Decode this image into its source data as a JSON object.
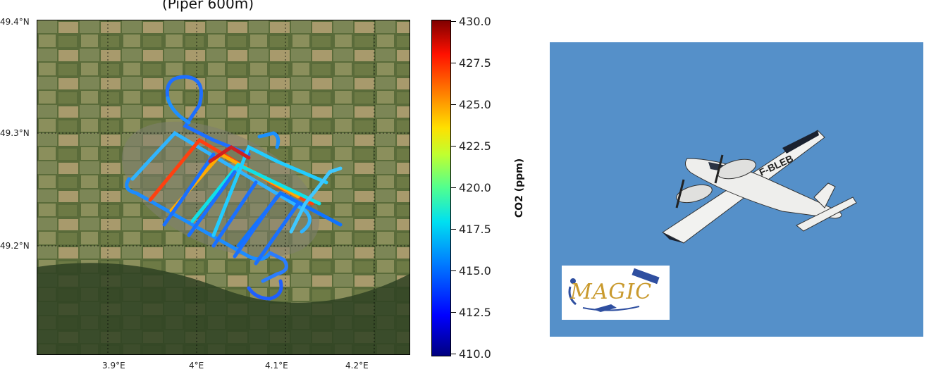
{
  "map": {
    "title": "(Piper 600m)",
    "lat_labels": [
      "49.4°N",
      "49.3°N",
      "49.2°N"
    ],
    "lon_labels": [
      "3.9°E",
      "4°E",
      "4.1°E",
      "4.2°E"
    ]
  },
  "colorbar": {
    "label": "CO2 (ppm)",
    "ticks": [
      "430.0",
      "427.5",
      "425.0",
      "422.5",
      "420.0",
      "417.5",
      "415.0",
      "412.5",
      "410.0"
    ],
    "range": [
      410.0,
      430.0
    ],
    "colormap": "jet"
  },
  "photo": {
    "aircraft_registration": "F-BLEB",
    "logo_text": "MAGIC",
    "sky_color": "#5590c9"
  }
}
